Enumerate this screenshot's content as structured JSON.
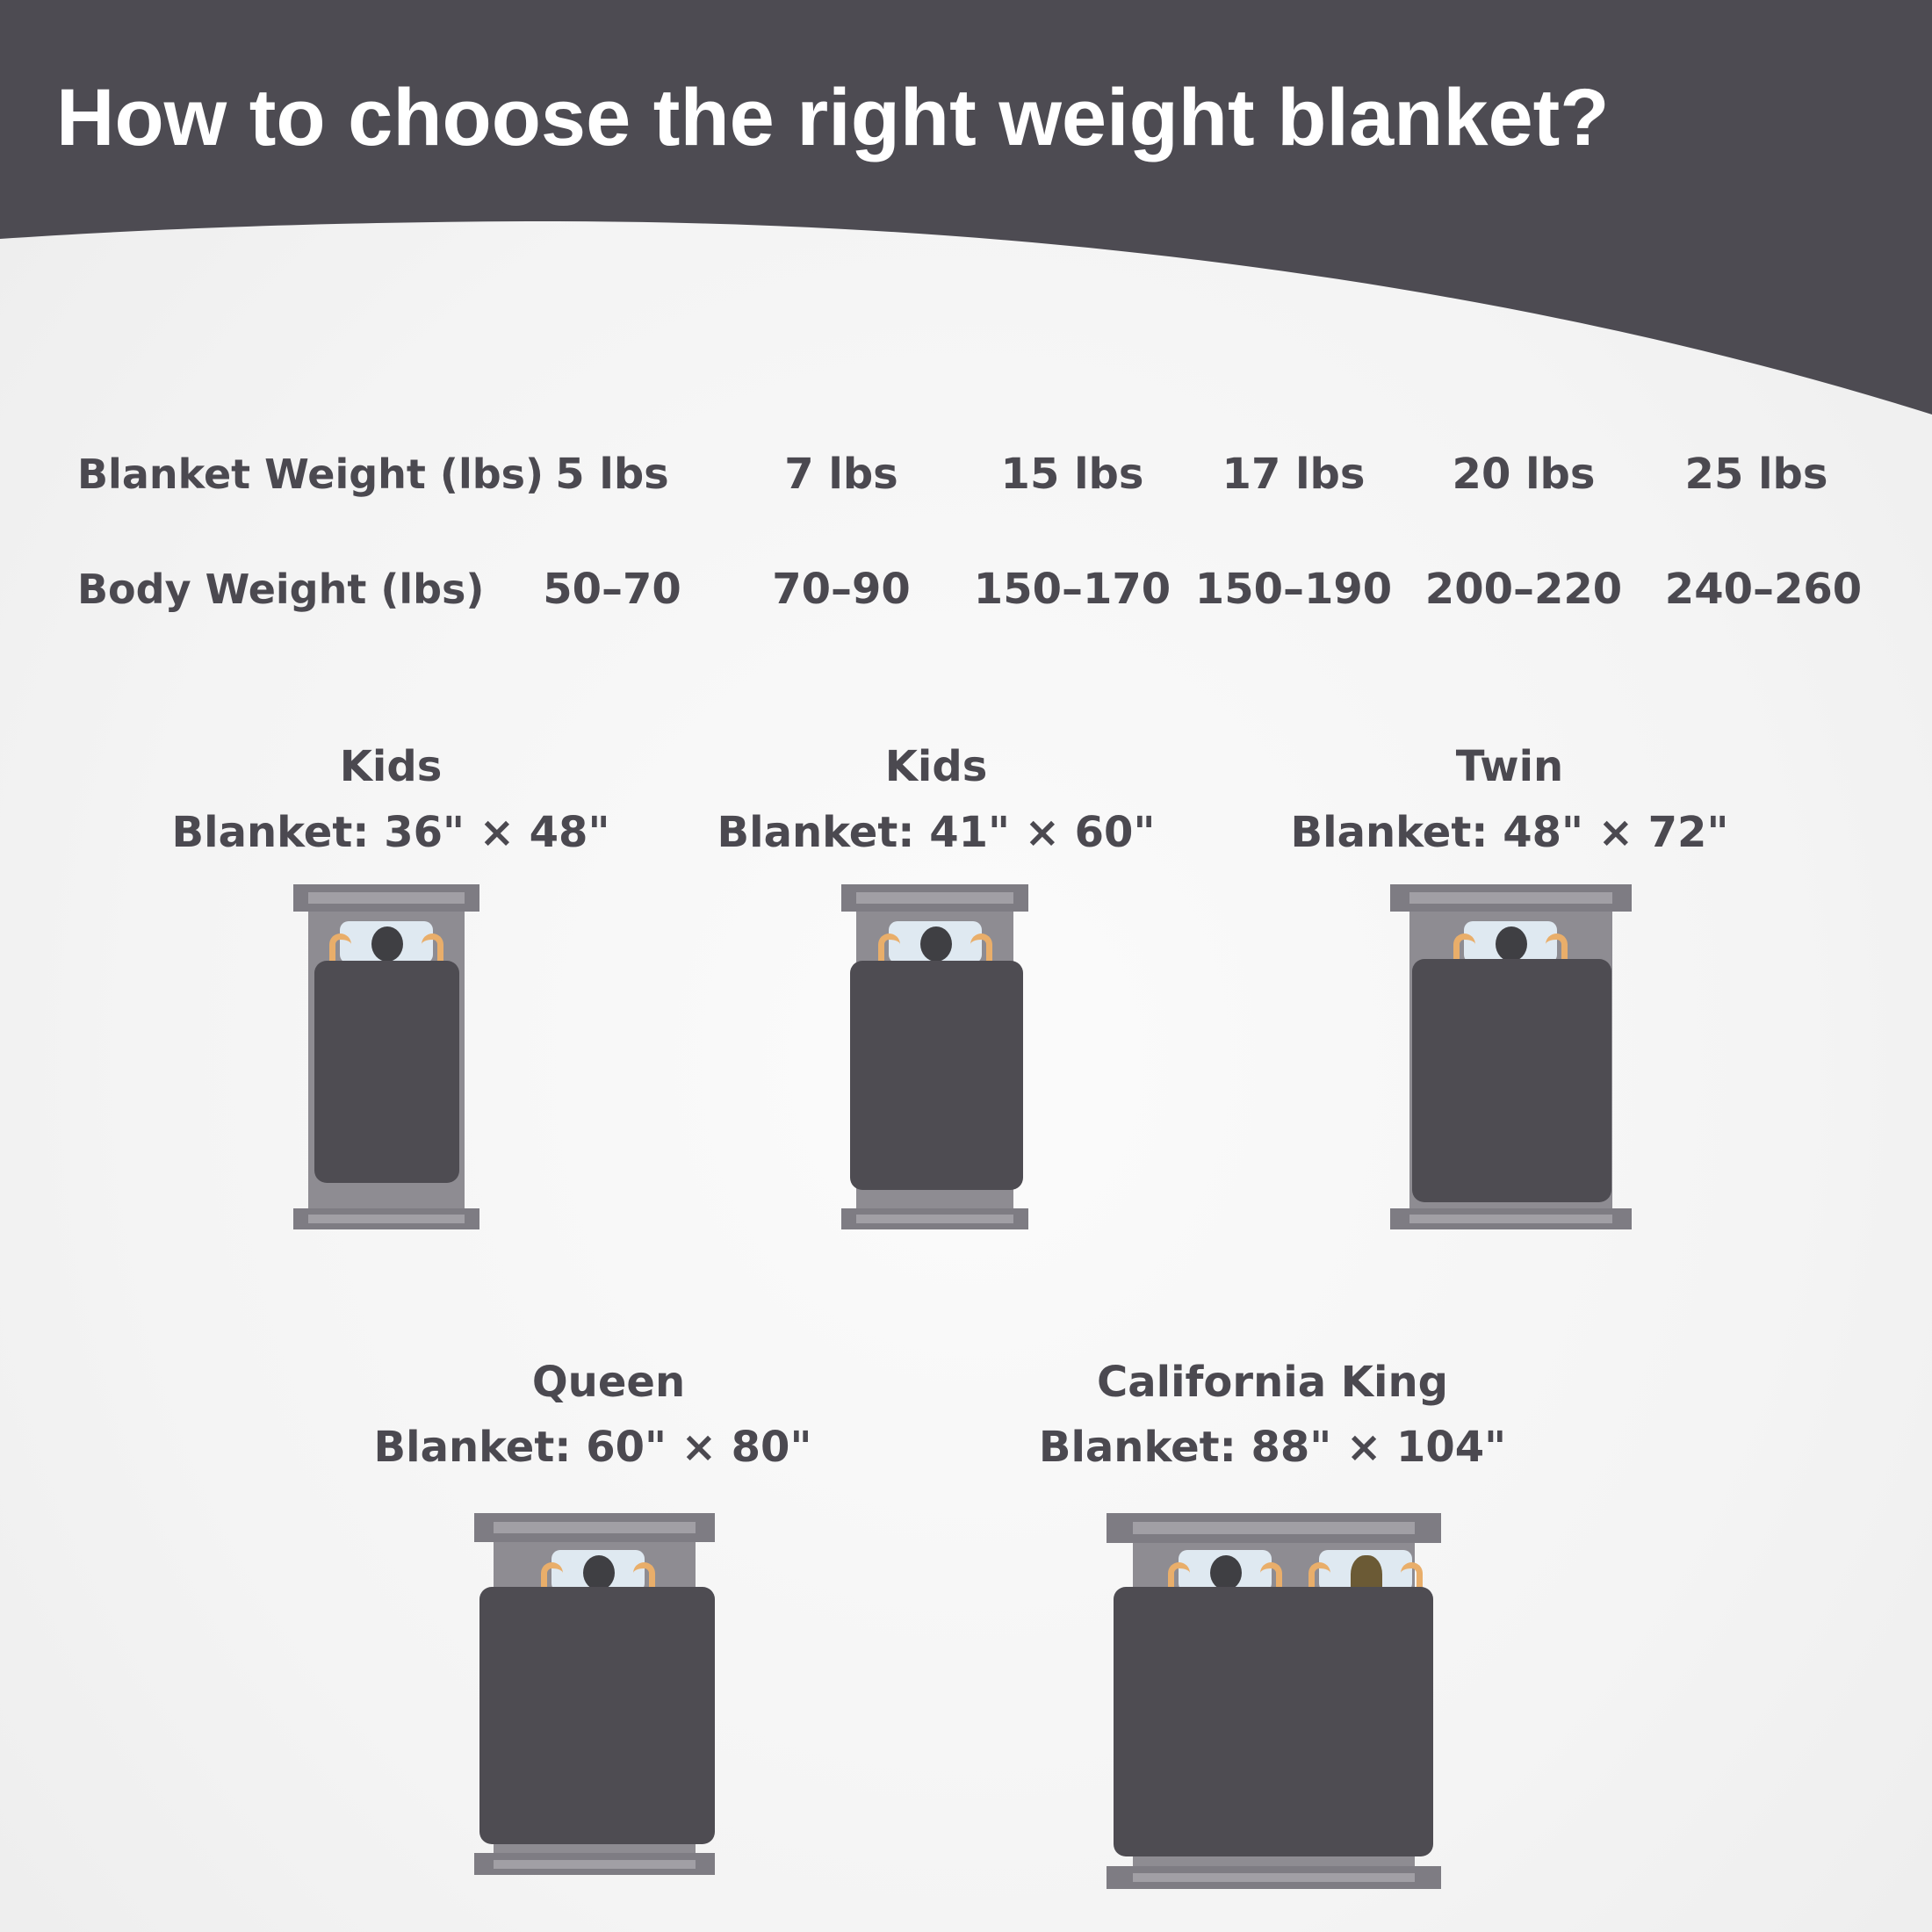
{
  "title": "How to choose the right weight blanket?",
  "colors": {
    "header": "#4d4b52",
    "text": "#4b4950",
    "blanket": "#4e4c52",
    "frame": "#8e8c92"
  },
  "table": {
    "rows": [
      {
        "label": "Blanket Weight (lbs)",
        "values": [
          "5 lbs",
          "7 lbs",
          "15 lbs",
          "17 lbs",
          "20 lbs",
          "25 lbs"
        ]
      },
      {
        "label": "Body Weight (lbs)",
        "values": [
          "50–70",
          "70–90",
          "150–170",
          "150–190",
          "200–220",
          "240–260"
        ]
      }
    ]
  },
  "beds": [
    {
      "name": "Kids",
      "size": "Blanket:  36\" × 48\""
    },
    {
      "name": "Kids",
      "size": "Blanket:  41\" × 60\""
    },
    {
      "name": "Twin",
      "size": "Blanket:  48\" × 72\""
    },
    {
      "name": "Queen",
      "size": "Blanket:  60\" × 80\""
    },
    {
      "name": "California King",
      "size": "Blanket:  88\" × 104\""
    }
  ]
}
